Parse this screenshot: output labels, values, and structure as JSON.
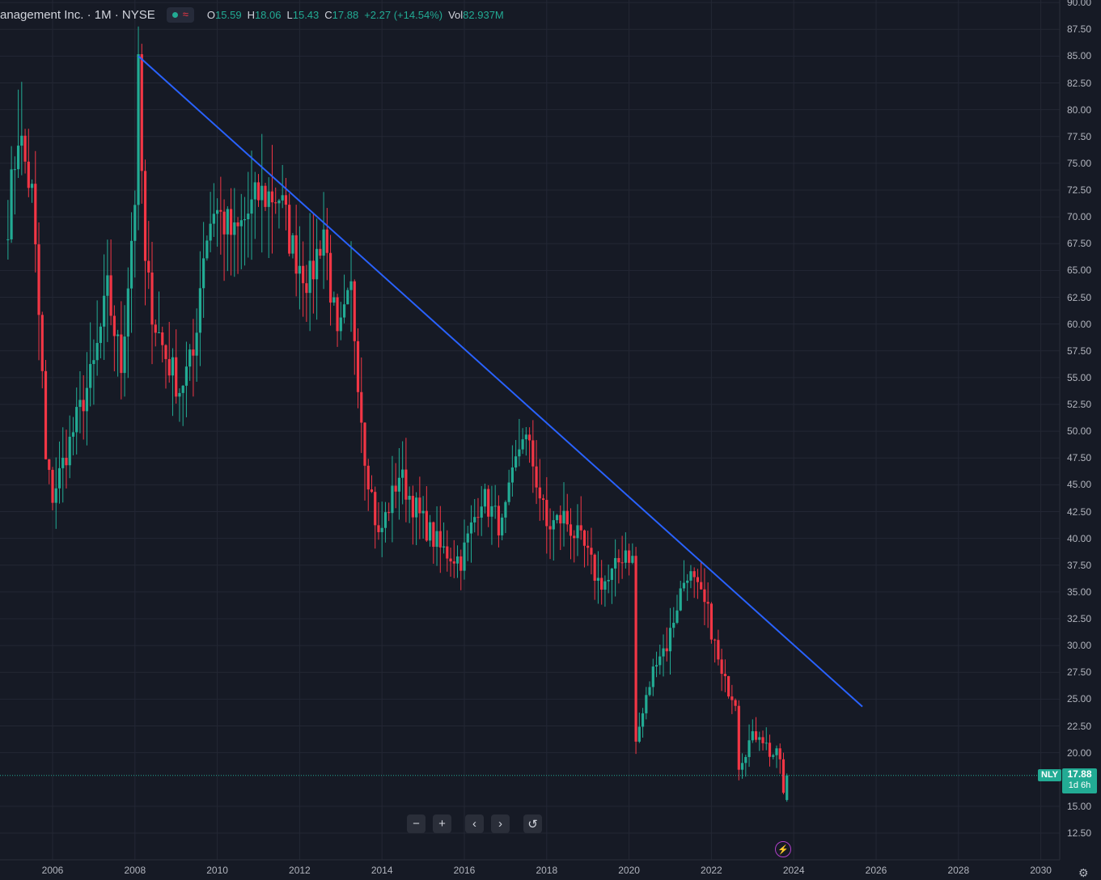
{
  "header": {
    "title": "anagement Inc. · 1M · NYSE",
    "ohlc": [
      {
        "key": "O",
        "value": "15.59"
      },
      {
        "key": "H",
        "value": "18.06"
      },
      {
        "key": "L",
        "value": "15.43"
      },
      {
        "key": "C",
        "value": "17.88"
      },
      {
        "key": "",
        "value": "+2.27 (+14.54%)"
      },
      {
        "key": "Vol",
        "value": "82.937M"
      }
    ]
  },
  "price_tag": {
    "symbol": "NLY",
    "price": "17.88",
    "countdown": "1d 6h"
  },
  "colors": {
    "background": "#161a25",
    "up": "#22ab94",
    "down": "#f23645",
    "trendline": "#2962ff",
    "grid": "#232734"
  },
  "icons": {
    "zoom_out": "minus-icon",
    "zoom_in": "plus-icon",
    "back": "chevron-left-icon",
    "forward": "chevron-right-icon",
    "reset": "reset-icon",
    "events": "lightning-icon",
    "settings": "gear-icon"
  },
  "toolbar": {
    "minus": "−",
    "plus": "+",
    "left": "‹",
    "right": "›",
    "reset": "↺",
    "bolt": "⚡",
    "gear": "⚙"
  },
  "chart_data": {
    "type": "candlestick",
    "interval": "1M",
    "y_range": [
      10,
      90
    ],
    "y_ticks": [
      "90.00",
      "87.50",
      "85.00",
      "82.50",
      "80.00",
      "77.50",
      "75.00",
      "72.50",
      "70.00",
      "67.50",
      "65.00",
      "62.50",
      "60.00",
      "57.50",
      "55.00",
      "52.50",
      "50.00",
      "47.50",
      "45.00",
      "42.50",
      "40.00",
      "37.50",
      "35.00",
      "32.50",
      "30.00",
      "27.50",
      "25.00",
      "22.50",
      "20.00",
      "15.00",
      "12.50"
    ],
    "x_range": [
      "2005-01",
      "2031-06"
    ],
    "x_ticks": [
      "2006",
      "2008",
      "2010",
      "2012",
      "2014",
      "2016",
      "2018",
      "2020",
      "2022",
      "2024",
      "2026",
      "2028",
      "2030"
    ],
    "grid": true,
    "last_price": 17.88,
    "trendline": {
      "start": {
        "date": "2008-02",
        "price": 85
      },
      "end": {
        "date": "2025-09",
        "price": 24.3
      }
    },
    "anchors": [
      {
        "date": "2004-12",
        "price": 70
      },
      {
        "date": "2005-03",
        "price": 78
      },
      {
        "date": "2005-07",
        "price": 72
      },
      {
        "date": "2005-10",
        "price": 55
      },
      {
        "date": "2005-11",
        "price": 47
      },
      {
        "date": "2006-01",
        "price": 44
      },
      {
        "date": "2006-07",
        "price": 50
      },
      {
        "date": "2007-01",
        "price": 56
      },
      {
        "date": "2007-05",
        "price": 63
      },
      {
        "date": "2007-09",
        "price": 56
      },
      {
        "date": "2008-01",
        "price": 72
      },
      {
        "date": "2008-02",
        "price": 83
      },
      {
        "date": "2008-04",
        "price": 65
      },
      {
        "date": "2008-07",
        "price": 60
      },
      {
        "date": "2008-10",
        "price": 57
      },
      {
        "date": "2009-02",
        "price": 54
      },
      {
        "date": "2009-06",
        "price": 57
      },
      {
        "date": "2009-09",
        "price": 67
      },
      {
        "date": "2009-12",
        "price": 71
      },
      {
        "date": "2010-06",
        "price": 68
      },
      {
        "date": "2011-01",
        "price": 72
      },
      {
        "date": "2011-07",
        "price": 72
      },
      {
        "date": "2011-11",
        "price": 67
      },
      {
        "date": "2012-04",
        "price": 64
      },
      {
        "date": "2012-08",
        "price": 69
      },
      {
        "date": "2012-12",
        "price": 58
      },
      {
        "date": "2013-04",
        "price": 63
      },
      {
        "date": "2013-08",
        "price": 48
      },
      {
        "date": "2013-12",
        "price": 40
      },
      {
        "date": "2014-06",
        "price": 46
      },
      {
        "date": "2014-12",
        "price": 42
      },
      {
        "date": "2015-06",
        "price": 39
      },
      {
        "date": "2015-12",
        "price": 38
      },
      {
        "date": "2016-06",
        "price": 44
      },
      {
        "date": "2016-12",
        "price": 41
      },
      {
        "date": "2017-06",
        "price": 50
      },
      {
        "date": "2017-09",
        "price": 47
      },
      {
        "date": "2018-01",
        "price": 41
      },
      {
        "date": "2018-06",
        "price": 42
      },
      {
        "date": "2018-12",
        "price": 39
      },
      {
        "date": "2019-04",
        "price": 36
      },
      {
        "date": "2019-07",
        "price": 36
      },
      {
        "date": "2019-12",
        "price": 39
      },
      {
        "date": "2020-02",
        "price": 38
      },
      {
        "date": "2020-03",
        "price": 21
      },
      {
        "date": "2020-06",
        "price": 25
      },
      {
        "date": "2020-09",
        "price": 29
      },
      {
        "date": "2020-12",
        "price": 30
      },
      {
        "date": "2021-04",
        "price": 35
      },
      {
        "date": "2021-06",
        "price": 37
      },
      {
        "date": "2021-12",
        "price": 33
      },
      {
        "date": "2022-04",
        "price": 27
      },
      {
        "date": "2022-08",
        "price": 25
      },
      {
        "date": "2022-09",
        "price": 19
      },
      {
        "date": "2022-12",
        "price": 21
      },
      {
        "date": "2023-03",
        "price": 22
      },
      {
        "date": "2023-06",
        "price": 20
      },
      {
        "date": "2023-09",
        "price": 19.5
      },
      {
        "date": "2023-10",
        "price": 16
      },
      {
        "date": "2023-11",
        "price": 17.88
      }
    ]
  }
}
